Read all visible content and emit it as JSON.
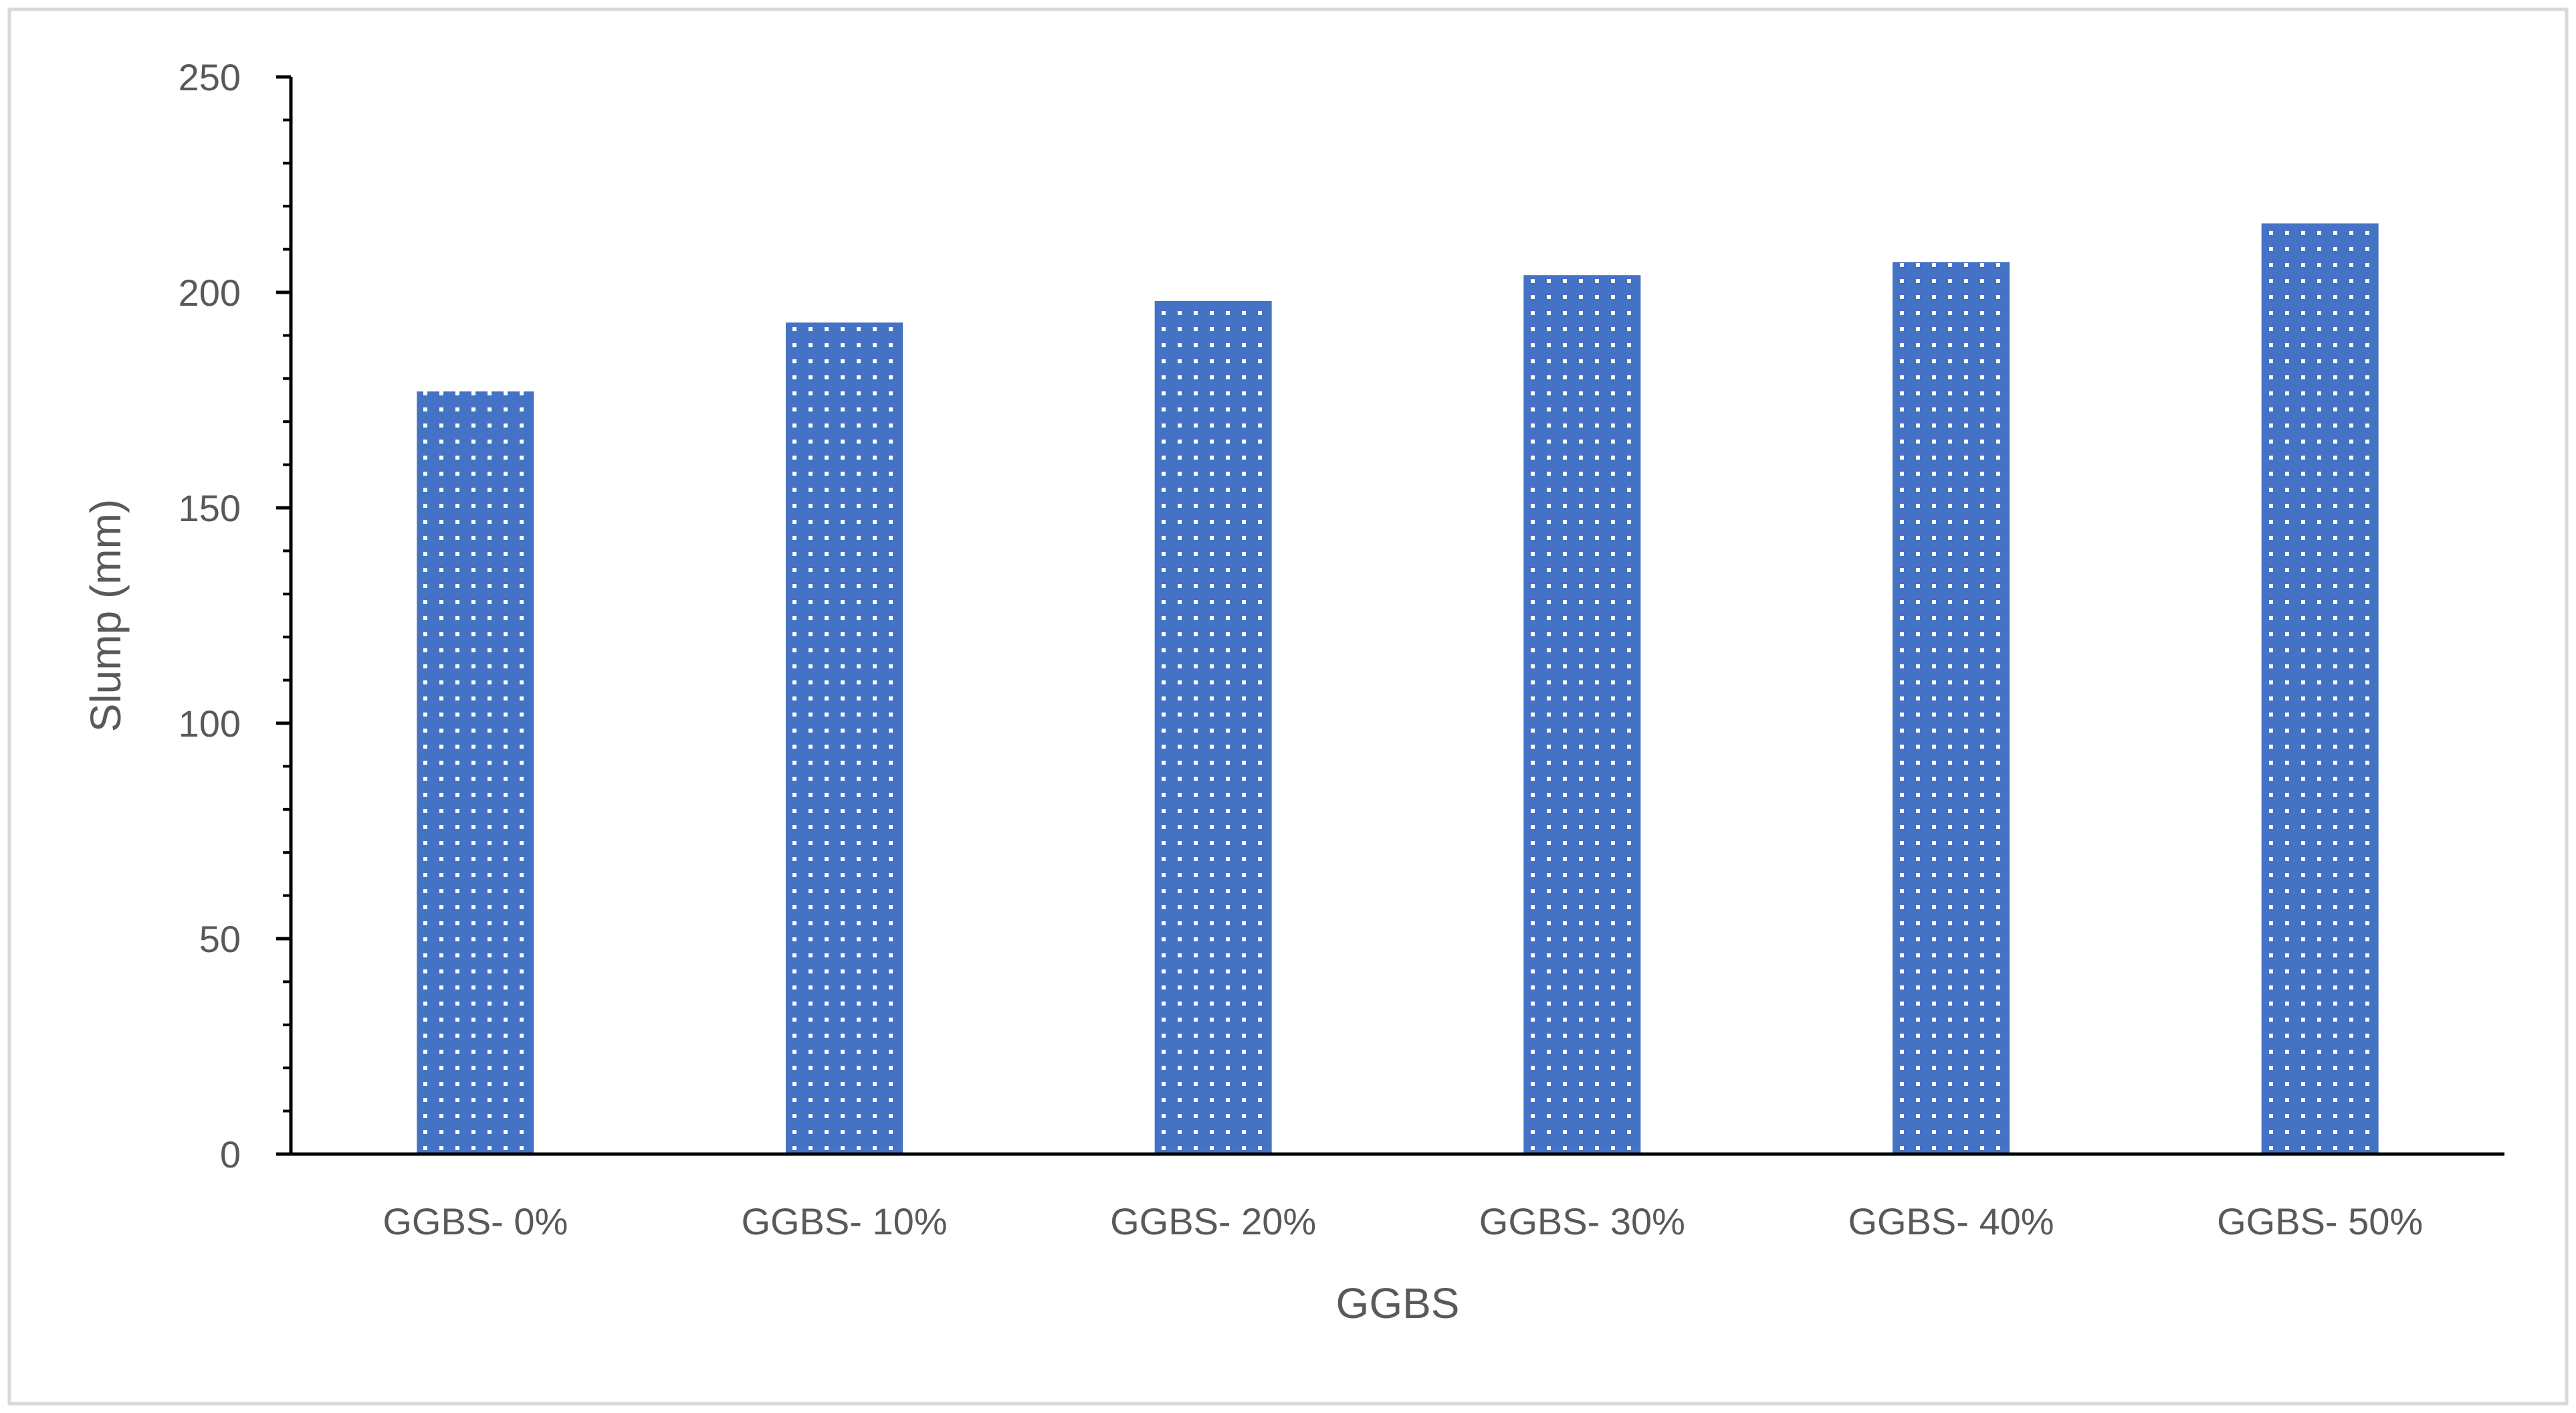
{
  "chart_data": {
    "type": "bar",
    "title": "",
    "xlabel": "GGBS",
    "ylabel": "Slump (mm)",
    "categories": [
      "GGBS- 0%",
      "GGBS- 10%",
      "GGBS- 20%",
      "GGBS- 30%",
      "GGBS- 40%",
      "GGBS- 50%"
    ],
    "values": [
      177,
      193,
      198,
      204,
      207,
      216
    ],
    "ylim": [
      0,
      250
    ],
    "yticks": [
      0,
      50,
      100,
      150,
      200,
      250
    ],
    "minor_ticks_per_major": 5,
    "grid": false,
    "legend": "none",
    "bar_pattern": "dotted",
    "colors": {
      "bar": "#4472C4",
      "bar_dots": "#ffffff",
      "axis": "#000000",
      "text": "#595959",
      "frame": "#D9D9D9"
    }
  }
}
